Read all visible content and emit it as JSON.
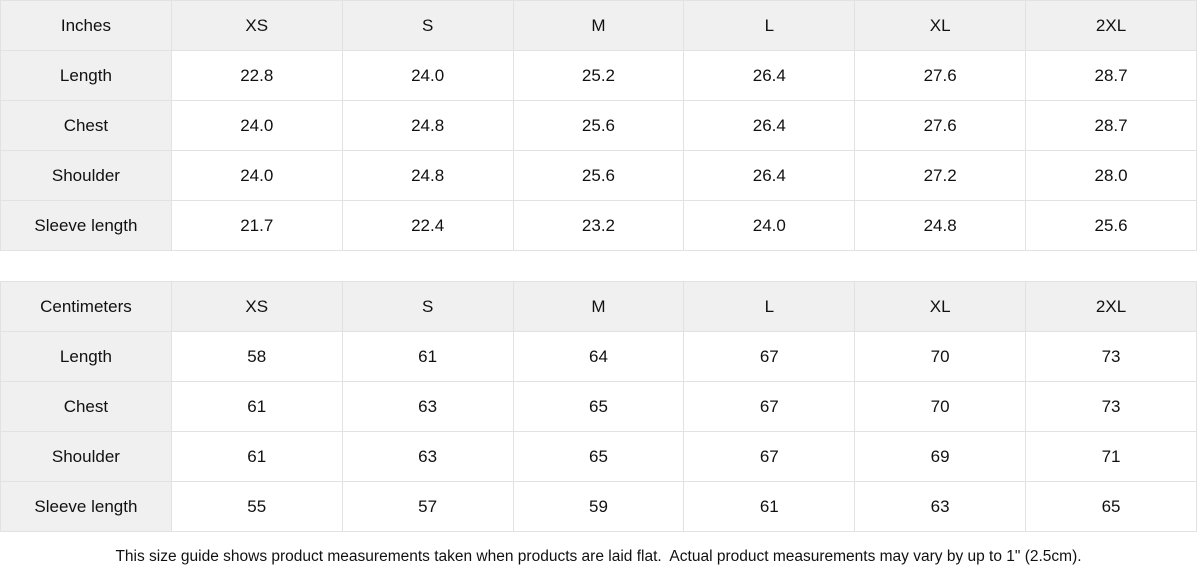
{
  "tables": [
    {
      "unit_label": "Inches",
      "sizes": [
        "XS",
        "S",
        "M",
        "L",
        "XL",
        "2XL"
      ],
      "rows": [
        {
          "label": "Length",
          "values": [
            "22.8",
            "24.0",
            "25.2",
            "26.4",
            "27.6",
            "28.7"
          ]
        },
        {
          "label": "Chest",
          "values": [
            "24.0",
            "24.8",
            "25.6",
            "26.4",
            "27.6",
            "28.7"
          ]
        },
        {
          "label": "Shoulder",
          "values": [
            "24.0",
            "24.8",
            "25.6",
            "26.4",
            "27.2",
            "28.0"
          ]
        },
        {
          "label": "Sleeve length",
          "values": [
            "21.7",
            "22.4",
            "23.2",
            "24.0",
            "24.8",
            "25.6"
          ]
        }
      ]
    },
    {
      "unit_label": "Centimeters",
      "sizes": [
        "XS",
        "S",
        "M",
        "L",
        "XL",
        "2XL"
      ],
      "rows": [
        {
          "label": "Length",
          "values": [
            "58",
            "61",
            "64",
            "67",
            "70",
            "73"
          ]
        },
        {
          "label": "Chest",
          "values": [
            "61",
            "63",
            "65",
            "67",
            "70",
            "73"
          ]
        },
        {
          "label": "Shoulder",
          "values": [
            "61",
            "63",
            "65",
            "67",
            "69",
            "71"
          ]
        },
        {
          "label": "Sleeve length",
          "values": [
            "55",
            "57",
            "59",
            "61",
            "63",
            "65"
          ]
        }
      ]
    }
  ],
  "footer": {
    "note": "This size guide shows product measurements taken when products are laid flat.  Actual product measurements may vary by up to 1\" (2.5cm)."
  },
  "colors": {
    "shaded_cell_background": "#f0f0f0",
    "cell_border": "#e2e2e2",
    "text": "#111111",
    "page_background": "#ffffff"
  }
}
